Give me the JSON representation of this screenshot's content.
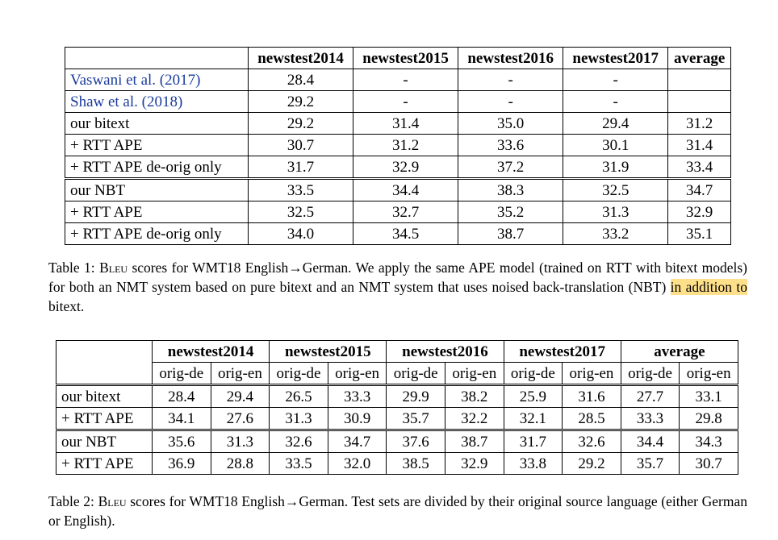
{
  "table1": {
    "columns": [
      "",
      "newstest2014",
      "newstest2015",
      "newstest2016",
      "newstest2017",
      "average"
    ],
    "rows": [
      {
        "label": "Vaswani et al. (2017)",
        "cells": [
          "28.4",
          "-",
          "-",
          "-",
          ""
        ]
      },
      {
        "label": "Shaw et al. (2018)",
        "cells": [
          "29.2",
          "-",
          "-",
          "-",
          ""
        ]
      },
      {
        "label": "our bitext",
        "cells": [
          "29.2",
          "31.4",
          "35.0",
          "29.4",
          "31.2"
        ]
      },
      {
        "label": "+ RTT APE",
        "cells": [
          "30.7",
          "31.2",
          "33.6",
          "30.1",
          "31.4"
        ]
      },
      {
        "label": "+ RTT APE de-orig only",
        "cells": [
          "31.7",
          "32.9",
          "37.2",
          "31.9",
          "33.4"
        ]
      },
      {
        "label": "our NBT",
        "cells": [
          "33.5",
          "34.4",
          "38.3",
          "32.5",
          "34.7"
        ]
      },
      {
        "label": "+ RTT APE",
        "cells": [
          "32.5",
          "32.7",
          "35.2",
          "31.3",
          "32.9"
        ]
      },
      {
        "label": "+ RTT APE de-orig only",
        "cells": [
          "34.0",
          "34.5",
          "38.7",
          "33.2",
          "35.1"
        ]
      }
    ],
    "caption": {
      "prefix": "Table 1: ",
      "bleu": "Bleu",
      "text1": " scores for WMT18 English→German. We apply the same APE model (trained on RTT with bitext models) for both an NMT system based on pure bitext and an NMT system that uses noised back-translation (NBT) ",
      "highlight": "in addition to",
      "text2": " bitext."
    }
  },
  "table2": {
    "groups": [
      "newstest2014",
      "newstest2015",
      "newstest2016",
      "newstest2017",
      "average"
    ],
    "subcolumns": [
      "orig-de",
      "orig-en"
    ],
    "rows": [
      {
        "label": "our bitext",
        "cells": [
          "28.4",
          "29.4",
          "26.5",
          "33.3",
          "29.9",
          "38.2",
          "25.9",
          "31.6",
          "27.7",
          "33.1"
        ]
      },
      {
        "label": "+ RTT APE",
        "cells": [
          "34.1",
          "27.6",
          "31.3",
          "30.9",
          "35.7",
          "32.2",
          "32.1",
          "28.5",
          "33.3",
          "29.8"
        ]
      },
      {
        "label": "our NBT",
        "cells": [
          "35.6",
          "31.3",
          "32.6",
          "34.7",
          "37.6",
          "38.7",
          "31.7",
          "32.6",
          "34.4",
          "34.3"
        ]
      },
      {
        "label": "+ RTT APE",
        "cells": [
          "36.9",
          "28.8",
          "33.5",
          "32.0",
          "38.5",
          "32.9",
          "33.8",
          "29.2",
          "35.7",
          "30.7"
        ]
      }
    ],
    "caption": {
      "prefix": "Table 2: ",
      "bleu": "Bleu",
      "text": " scores for WMT18 English→German.  Test sets are divided by their original source language (either German or English)."
    }
  },
  "colors": {
    "citation": "#1a3c9c",
    "highlight": "#ffe08a"
  }
}
